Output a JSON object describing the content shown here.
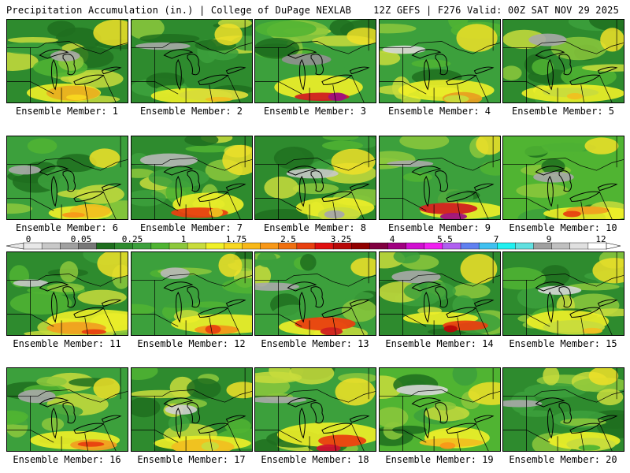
{
  "header": {
    "left": "Precipitation Accumulation (in.) | College of DuPage NEXLAB",
    "right": "12Z GEFS | F276 Valid: 00Z SAT NOV 29 2025"
  },
  "colorbar": {
    "labels": [
      "0",
      "0.05",
      "0.25",
      "1",
      "1.75",
      "2.5",
      "3.25",
      "4",
      "5.5",
      "7",
      "9",
      "12"
    ],
    "colors": [
      "#e8e8e8",
      "#c8c8c8",
      "#a0a0a0",
      "#787878",
      "#1e6e1e",
      "#2e8b2e",
      "#3ca03c",
      "#50b432",
      "#8cc83c",
      "#c8dc3c",
      "#f0f028",
      "#f8d820",
      "#f8b818",
      "#f89818",
      "#f07010",
      "#e84010",
      "#e01010",
      "#b80808",
      "#900000",
      "#800040",
      "#a00080",
      "#d010d0",
      "#f020f0",
      "#b060f0",
      "#6080f0",
      "#40c0f0",
      "#20f0f0",
      "#60e0e0",
      "#a0a0a0",
      "#c0c0c0",
      "#e0e0e0",
      "#ffffff"
    ]
  },
  "panels": [
    {
      "caption": "Ensemble Member: 1",
      "base": "#2e8b2e",
      "wet": "#e8b020",
      "dry": "#a8a8a8",
      "heavy": "#f8d820"
    },
    {
      "caption": "Ensemble Member: 2",
      "base": "#2e8b2e",
      "wet": "#d8dc38",
      "dry": "#a8a8a8",
      "heavy": "#f0c020"
    },
    {
      "caption": "Ensemble Member: 3",
      "base": "#3ca03c",
      "wet": "#d02020",
      "dry": "#909090",
      "heavy": "#a01080"
    },
    {
      "caption": "Ensemble Member: 4",
      "base": "#3ca03c",
      "wet": "#e8a020",
      "dry": "#d8d8d8",
      "heavy": "#c8dc3c"
    },
    {
      "caption": "Ensemble Member: 5",
      "base": "#2e8b2e",
      "wet": "#c8dc3c",
      "dry": "#a8a8a8",
      "heavy": "#f0c020"
    },
    {
      "caption": "Ensemble Member: 6",
      "base": "#3ca03c",
      "wet": "#f0c020",
      "dry": "#a8a8a8",
      "heavy": "#f89818"
    },
    {
      "caption": "Ensemble Member: 7",
      "base": "#2e8b2e",
      "wet": "#e84010",
      "dry": "#b8b8b8",
      "heavy": "#f0c020"
    },
    {
      "caption": "Ensemble Member: 8",
      "base": "#2e8b2e",
      "wet": "#c8dc3c",
      "dry": "#c8c8c8",
      "heavy": "#a8a8a8"
    },
    {
      "caption": "Ensemble Member: 9",
      "base": "#3ca03c",
      "wet": "#d02020",
      "dry": "#a8a8a8",
      "heavy": "#a01080"
    },
    {
      "caption": "Ensemble Member: 10",
      "base": "#50b432",
      "wet": "#f0a020",
      "dry": "#a8a8a8",
      "heavy": "#e84010"
    },
    {
      "caption": "Ensemble Member: 11",
      "base": "#2e8b2e",
      "wet": "#f0a020",
      "dry": "#c8c8c8",
      "heavy": "#e84010"
    },
    {
      "caption": "Ensemble Member: 12",
      "base": "#3ca03c",
      "wet": "#f09818",
      "dry": "#b8b8b8",
      "heavy": "#e84010"
    },
    {
      "caption": "Ensemble Member: 13",
      "base": "#3ca03c",
      "wet": "#e84010",
      "dry": "#a8a8a8",
      "heavy": "#d02020"
    },
    {
      "caption": "Ensemble Member: 14",
      "base": "#2e8b2e",
      "wet": "#e84010",
      "dry": "#a8a8a8",
      "heavy": "#b80808"
    },
    {
      "caption": "Ensemble Member: 15",
      "base": "#2e8b2e",
      "wet": "#c8dc3c",
      "dry": "#d8d8d8",
      "heavy": "#f0c020"
    },
    {
      "caption": "Ensemble Member: 16",
      "base": "#3ca03c",
      "wet": "#f0a020",
      "dry": "#a8a8a8",
      "heavy": "#e84010"
    },
    {
      "caption": "Ensemble Member: 17",
      "base": "#2e8b2e",
      "wet": "#f0c020",
      "dry": "#d0d0d0",
      "heavy": "#c8dc3c"
    },
    {
      "caption": "Ensemble Member: 18",
      "base": "#3ca03c",
      "wet": "#e84010",
      "dry": "#a8a8a8",
      "heavy": "#d01030"
    },
    {
      "caption": "Ensemble Member: 19",
      "base": "#50b432",
      "wet": "#f0c020",
      "dry": "#d8d8d8",
      "heavy": "#f89818"
    },
    {
      "caption": "Ensemble Member: 20",
      "base": "#2e8b2e",
      "wet": "#c8dc3c",
      "dry": "#a8a8a8",
      "heavy": "#50b432"
    }
  ]
}
